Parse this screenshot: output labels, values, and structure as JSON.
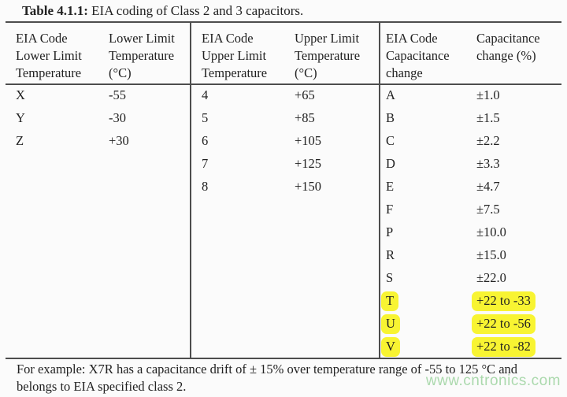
{
  "title": {
    "bold": "Table 4.1.1:",
    "rest": " EIA coding of Class 2 and 3 capacitors."
  },
  "table": {
    "groups": [
      {
        "header_code": "EIA Code\nLower Limit\nTemperature",
        "header_value": "Lower Limit\nTemperature\n(°C)",
        "rows": [
          {
            "code": "X",
            "value": "-55"
          },
          {
            "code": "Y",
            "value": "-30"
          },
          {
            "code": "Z",
            "value": "+30"
          }
        ]
      },
      {
        "header_code": "EIA Code\nUpper Limit\nTemperature",
        "header_value": "Upper Limit\nTemperature\n(°C)",
        "rows": [
          {
            "code": "4",
            "value": "+65"
          },
          {
            "code": "5",
            "value": "+85"
          },
          {
            "code": "6",
            "value": "+105"
          },
          {
            "code": "7",
            "value": "+125"
          },
          {
            "code": "8",
            "value": "+150"
          }
        ]
      },
      {
        "header_code": "EIA Code\nCapacitance\nchange",
        "header_value": "Capacitance\nchange (%)",
        "rows": [
          {
            "code": "A",
            "value": "±1.0",
            "highlighted": false
          },
          {
            "code": "B",
            "value": "±1.5",
            "highlighted": false
          },
          {
            "code": "C",
            "value": "±2.2",
            "highlighted": false
          },
          {
            "code": "D",
            "value": "±3.3",
            "highlighted": false
          },
          {
            "code": "E",
            "value": "±4.7",
            "highlighted": false
          },
          {
            "code": "F",
            "value": "±7.5",
            "highlighted": false
          },
          {
            "code": "P",
            "value": "±10.0",
            "highlighted": false
          },
          {
            "code": "R",
            "value": "±15.0",
            "highlighted": false
          },
          {
            "code": "S",
            "value": "±22.0",
            "highlighted": false
          },
          {
            "code": "T",
            "value": "+22 to -33",
            "highlighted": true
          },
          {
            "code": "U",
            "value": "+22 to -56",
            "highlighted": true
          },
          {
            "code": "V",
            "value": "+22 to -82",
            "highlighted": true
          }
        ]
      }
    ]
  },
  "footer": {
    "line1": "For example: X7R has a capacitance drift of ± 15% over temperature range of -55 to 125 °C and",
    "line2": "belongs to EIA specified class 2."
  },
  "watermark": {
    "text": "www.cntronics.com"
  },
  "colors": {
    "line": "#4d4d4d",
    "text": "#222222",
    "background": "#fbfbfb",
    "highlight": "#f8f432",
    "watermark": "#abd9ad"
  }
}
